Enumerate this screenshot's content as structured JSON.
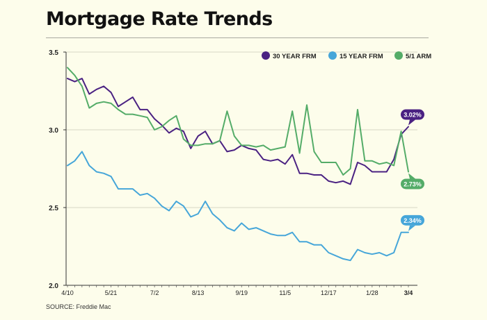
{
  "chart_data": {
    "type": "line",
    "title": "Mortgage Rate Trends",
    "source": "SOURCE: Freddie Mac",
    "xlabel": "",
    "ylabel": "",
    "ylim": [
      2.0,
      3.5
    ],
    "yticks": [
      {
        "value": 2.0,
        "label": "2.0"
      },
      {
        "value": 2.5,
        "label": "2.5"
      },
      {
        "value": 3.0,
        "label": "3.0"
      },
      {
        "value": 3.5,
        "label": "3.5"
      }
    ],
    "xlim": [
      0,
      47
    ],
    "xticks": [
      {
        "index": 0,
        "label": "4/10",
        "bold": false
      },
      {
        "index": 6,
        "label": "5/21",
        "bold": false
      },
      {
        "index": 12,
        "label": "7/2",
        "bold": false
      },
      {
        "index": 18,
        "label": "8/13",
        "bold": false
      },
      {
        "index": 24,
        "label": "9/19",
        "bold": false
      },
      {
        "index": 30,
        "label": "11/5",
        "bold": false
      },
      {
        "index": 36,
        "label": "12/17",
        "bold": false
      },
      {
        "index": 42,
        "label": "1/28",
        "bold": false
      },
      {
        "index": 47,
        "label": "3/4",
        "bold": true
      }
    ],
    "legend_position": "top-right",
    "series": [
      {
        "name": "30 YEAR FRM",
        "color": "#4a2182",
        "end_label": "3.02%",
        "values": [
          3.33,
          3.31,
          3.33,
          3.23,
          3.26,
          3.28,
          3.24,
          3.15,
          3.18,
          3.21,
          3.13,
          3.13,
          3.07,
          3.03,
          2.98,
          3.01,
          2.99,
          2.88,
          2.96,
          2.99,
          2.91,
          2.93,
          2.86,
          2.87,
          2.9,
          2.88,
          2.87,
          2.81,
          2.8,
          2.81,
          2.78,
          2.84,
          2.72,
          2.72,
          2.71,
          2.71,
          2.67,
          2.66,
          2.67,
          2.65,
          2.79,
          2.77,
          2.73,
          2.73,
          2.73,
          2.81,
          2.97,
          3.02
        ]
      },
      {
        "name": "15 YEAR FRM",
        "color": "#46a6d9",
        "end_label": "2.34%",
        "values": [
          2.77,
          2.8,
          2.86,
          2.77,
          2.73,
          2.72,
          2.7,
          2.62,
          2.62,
          2.62,
          2.58,
          2.59,
          2.56,
          2.51,
          2.48,
          2.54,
          2.51,
          2.44,
          2.46,
          2.54,
          2.46,
          2.42,
          2.37,
          2.35,
          2.4,
          2.36,
          2.37,
          2.35,
          2.33,
          2.32,
          2.32,
          2.34,
          2.28,
          2.28,
          2.26,
          2.26,
          2.21,
          2.19,
          2.17,
          2.16,
          2.23,
          2.21,
          2.2,
          2.21,
          2.19,
          2.21,
          2.34,
          2.34
        ]
      },
      {
        "name": "5/1 ARM",
        "color": "#54ac68",
        "end_label": "2.73%",
        "values": [
          3.4,
          3.35,
          3.28,
          3.14,
          3.17,
          3.18,
          3.17,
          3.13,
          3.1,
          3.1,
          3.09,
          3.08,
          3.0,
          3.02,
          3.06,
          3.09,
          2.94,
          2.9,
          2.9,
          2.91,
          2.91,
          2.93,
          3.12,
          2.96,
          2.9,
          2.9,
          2.89,
          2.9,
          2.87,
          2.88,
          2.89,
          3.12,
          2.85,
          3.16,
          2.86,
          2.79,
          2.79,
          2.79,
          2.71,
          2.75,
          3.13,
          2.8,
          2.8,
          2.78,
          2.79,
          2.77,
          2.99,
          2.73
        ]
      }
    ]
  }
}
